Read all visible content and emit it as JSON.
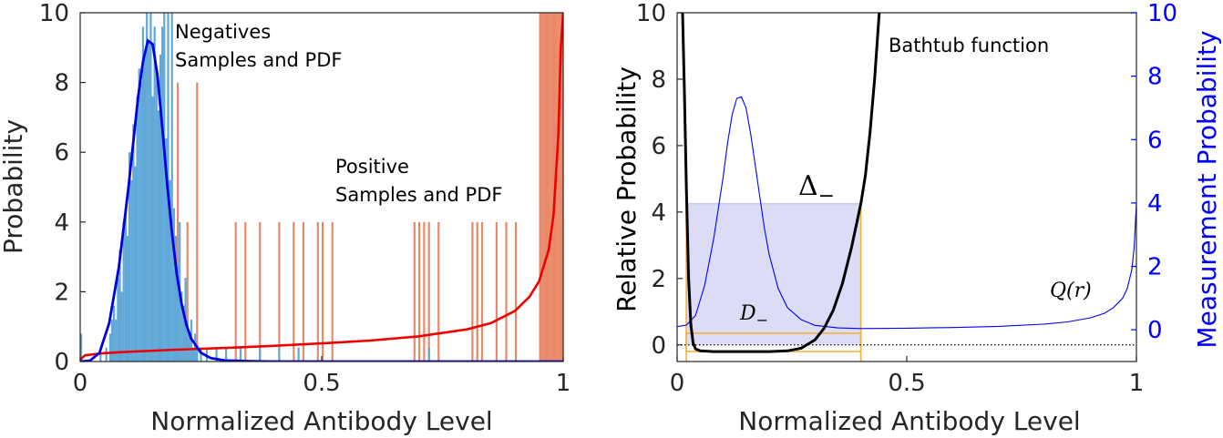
{
  "colors": {
    "neg_bars": "#5fa8d8",
    "pos_bars": "#e8896a",
    "neg_pdf": "#0000e0",
    "pos_pdf": "#ee0000",
    "bathtub": "#000000",
    "measure": "#0000ff",
    "shade": "#dcdcf6",
    "domain_box": "#f2b13c",
    "dotted": "#000000"
  },
  "chart_data": [
    {
      "type": "histogram+line",
      "title": "",
      "xlabel": "Normalized Antibody Level",
      "ylabel": "Probability",
      "xlim": [
        0,
        1
      ],
      "ylim": [
        0,
        10
      ],
      "xticks": [
        0,
        0.5,
        1
      ],
      "xtick_labels": [
        "0",
        "0.5",
        "1"
      ],
      "yticks": [
        0,
        2,
        4,
        6,
        8,
        10
      ],
      "ytick_labels": [
        "0",
        "2",
        "4",
        "6",
        "8",
        "10"
      ],
      "annotations": [
        {
          "lines": [
            "Negatives",
            "Samples and PDF"
          ],
          "x": 0.2,
          "y": 9.2
        },
        {
          "lines": [
            "Positive",
            "Samples and PDF"
          ],
          "x": 0.53,
          "y": 5.8
        }
      ],
      "series": [
        {
          "name": "Negatives samples",
          "kind": "bars",
          "bin_width": 0.004,
          "x": [
            0.0,
            0.04,
            0.052,
            0.06,
            0.064,
            0.068,
            0.072,
            0.076,
            0.08,
            0.084,
            0.088,
            0.092,
            0.096,
            0.1,
            0.104,
            0.108,
            0.112,
            0.116,
            0.12,
            0.124,
            0.128,
            0.132,
            0.136,
            0.14,
            0.144,
            0.148,
            0.152,
            0.156,
            0.16,
            0.164,
            0.168,
            0.172,
            0.176,
            0.18,
            0.184,
            0.188,
            0.192,
            0.196,
            0.2,
            0.204,
            0.208,
            0.212,
            0.216,
            0.22,
            0.224,
            0.228,
            0.232,
            0.236,
            0.24,
            0.248,
            0.26,
            0.28,
            0.3,
            0.33,
            0.37,
            0.41,
            0.45,
            0.72
          ],
          "values": [
            0.8,
            0.2,
            0.4,
            0.8,
            1.2,
            1.6,
            1.2,
            2.4,
            3.2,
            2.0,
            4.0,
            4.4,
            3.6,
            6.0,
            5.2,
            6.8,
            5.6,
            7.6,
            8.4,
            8.0,
            9.6,
            8.8,
            10,
            9.2,
            10,
            7.6,
            9.6,
            8.4,
            7.2,
            8.8,
            9.6,
            10,
            6.4,
            10,
            5.2,
            10,
            4.4,
            3.6,
            2.8,
            4.0,
            2.0,
            1.6,
            2.4,
            1.2,
            0.8,
            1.2,
            0.4,
            0.8,
            0.4,
            0.4,
            0.4,
            0.4,
            0.4,
            0.4,
            0.4,
            0.4,
            0.4,
            0.4
          ]
        },
        {
          "name": "Positive samples",
          "kind": "bars",
          "bin_width": 0.004,
          "x": [
            0.2,
            0.22,
            0.24,
            0.32,
            0.34,
            0.37,
            0.41,
            0.44,
            0.46,
            0.49,
            0.5,
            0.52,
            0.69,
            0.7,
            0.71,
            0.72,
            0.74,
            0.81,
            0.82,
            0.83,
            0.86,
            0.88,
            0.9,
            0.95,
            0.952,
            0.956,
            0.96,
            0.964,
            0.968,
            0.972,
            0.976,
            0.98,
            0.984,
            0.988,
            0.992,
            0.996
          ],
          "values": [
            8.0,
            4.0,
            8.0,
            4.0,
            4.0,
            4.0,
            4.0,
            4.0,
            4.0,
            4.0,
            4.0,
            4.0,
            4.0,
            4.0,
            4.0,
            4.0,
            4.0,
            4.0,
            4.0,
            4.0,
            4.0,
            4.0,
            4.0,
            10,
            10,
            10,
            10,
            10,
            10,
            10,
            10,
            10,
            10,
            10,
            10,
            10
          ]
        },
        {
          "name": "Negatives PDF",
          "kind": "line",
          "x": [
            0,
            0.02,
            0.04,
            0.06,
            0.08,
            0.1,
            0.11,
            0.12,
            0.13,
            0.14,
            0.15,
            0.16,
            0.17,
            0.18,
            0.19,
            0.2,
            0.21,
            0.22,
            0.23,
            0.25,
            0.27,
            0.3,
            0.35,
            0.4,
            0.5,
            0.6,
            0.8,
            1.0
          ],
          "values": [
            0,
            0.02,
            0.25,
            1.1,
            2.7,
            5.0,
            6.3,
            7.6,
            8.6,
            9.2,
            9.1,
            8.2,
            6.7,
            5.1,
            3.7,
            2.5,
            1.65,
            1.05,
            0.65,
            0.25,
            0.1,
            0.03,
            0.01,
            0,
            0,
            0,
            0,
            0
          ]
        },
        {
          "name": "Positive PDF",
          "kind": "line",
          "x": [
            0,
            0.01,
            0.05,
            0.1,
            0.2,
            0.3,
            0.4,
            0.5,
            0.6,
            0.7,
            0.8,
            0.85,
            0.9,
            0.93,
            0.95,
            0.97,
            0.98,
            0.99,
            0.995,
            1.0
          ],
          "values": [
            0.05,
            0.18,
            0.24,
            0.28,
            0.34,
            0.39,
            0.45,
            0.52,
            0.6,
            0.72,
            0.92,
            1.1,
            1.45,
            1.85,
            2.3,
            3.2,
            4.2,
            6.5,
            9.0,
            10
          ]
        }
      ]
    },
    {
      "type": "line",
      "title": "",
      "xlabel": "Normalized Antibody Level",
      "ylabel": "Relative Probability",
      "ylabel_right": "Measurement Probability",
      "xlim": [
        0,
        1
      ],
      "ylim": [
        -0.5,
        10
      ],
      "ylim_right": [
        -1,
        10
      ],
      "xticks": [
        0,
        0.5,
        1
      ],
      "xtick_labels": [
        "0",
        "0.5",
        "1"
      ],
      "yticks": [
        0,
        2,
        4,
        6,
        8,
        10
      ],
      "ytick_labels": [
        "0",
        "2",
        "4",
        "6",
        "8",
        "10"
      ],
      "yticks_right": [
        0,
        2,
        4,
        6,
        8,
        10
      ],
      "ytick_labels_right": [
        "0",
        "2",
        "4",
        "6",
        "8",
        "10"
      ],
      "annotations": {
        "bathtub_label": "Bathtub function",
        "delta_label": "Δ",
        "delta_sub": "−",
        "domain_label": "D",
        "domain_sub": "−",
        "q_label": "Q(r)"
      },
      "shaded_region": {
        "x": [
          0.02,
          0.4
        ],
        "y": [
          0,
          4.25
        ]
      },
      "domain_box": {
        "x": [
          0.02,
          0.4
        ],
        "y": [
          -0.2,
          0.35
        ],
        "top": 4.25
      },
      "reference_line_y": 0,
      "series": [
        {
          "name": "Bathtub function",
          "axis": "left",
          "x": [
            0.012,
            0.016,
            0.02,
            0.025,
            0.03,
            0.035,
            0.04,
            0.05,
            0.08,
            0.12,
            0.16,
            0.2,
            0.24,
            0.27,
            0.3,
            0.32,
            0.34,
            0.36,
            0.38,
            0.4,
            0.41,
            0.42,
            0.43,
            0.44
          ],
          "values": [
            10,
            7.5,
            4.8,
            2.0,
            0.6,
            0.05,
            -0.12,
            -0.18,
            -0.2,
            -0.2,
            -0.2,
            -0.2,
            -0.18,
            -0.1,
            0.15,
            0.5,
            1.05,
            1.85,
            2.95,
            4.25,
            5.1,
            6.4,
            8.0,
            10
          ]
        },
        {
          "name": "Q(r)",
          "axis": "right",
          "x": [
            0,
            0.02,
            0.04,
            0.06,
            0.08,
            0.1,
            0.11,
            0.12,
            0.13,
            0.14,
            0.15,
            0.16,
            0.17,
            0.18,
            0.19,
            0.2,
            0.22,
            0.24,
            0.27,
            0.3,
            0.35,
            0.4,
            0.5,
            0.6,
            0.7,
            0.8,
            0.85,
            0.9,
            0.93,
            0.95,
            0.97,
            0.98,
            0.99,
            0.995,
            1.0
          ],
          "values": [
            0.1,
            0.15,
            0.45,
            1.4,
            2.9,
            4.8,
            5.9,
            6.8,
            7.3,
            7.35,
            7.0,
            6.2,
            5.2,
            4.2,
            3.2,
            2.4,
            1.3,
            0.7,
            0.32,
            0.14,
            0.06,
            0.04,
            0.05,
            0.07,
            0.11,
            0.18,
            0.25,
            0.38,
            0.52,
            0.7,
            1.0,
            1.3,
            1.9,
            2.6,
            4.0
          ]
        }
      ]
    }
  ]
}
